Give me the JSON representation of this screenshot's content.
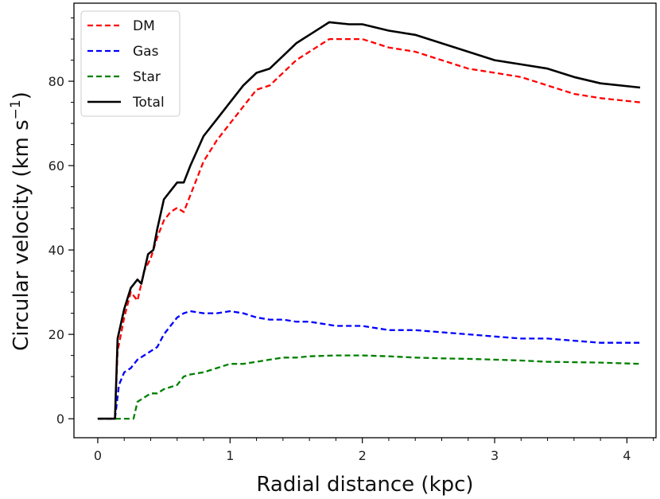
{
  "chart_data": {
    "type": "line",
    "title": "",
    "xlabel": "Radial distance (kpc)",
    "ylabel_main": "Circular velocity (km s",
    "ylabel_sup": "−1",
    "ylabel_close": ")",
    "xlim": [
      -0.18,
      4.22
    ],
    "ylim": [
      -4.5,
      98.5
    ],
    "xticks": [
      0,
      1,
      2,
      3,
      4
    ],
    "xtick_labels": [
      "0",
      "1",
      "2",
      "3",
      "4"
    ],
    "yticks": [
      0,
      20,
      40,
      60,
      80
    ],
    "ytick_labels": [
      "0",
      "20",
      "40",
      "60",
      "80"
    ],
    "x_minor_step": 0.2,
    "y_minor_step": 5,
    "grid": false,
    "legend_position": "top-left",
    "series": [
      {
        "name": "DM",
        "color": "#ff0000",
        "dashed": true,
        "points": [
          [
            0,
            0
          ],
          [
            0.13,
            0
          ],
          [
            0.15,
            16
          ],
          [
            0.2,
            24
          ],
          [
            0.25,
            30
          ],
          [
            0.3,
            28
          ],
          [
            0.35,
            35
          ],
          [
            0.4,
            38
          ],
          [
            0.45,
            43
          ],
          [
            0.5,
            47
          ],
          [
            0.55,
            49
          ],
          [
            0.6,
            50
          ],
          [
            0.65,
            49
          ],
          [
            0.7,
            53
          ],
          [
            0.8,
            61
          ],
          [
            0.9,
            66
          ],
          [
            1.0,
            70
          ],
          [
            1.1,
            74
          ],
          [
            1.2,
            78
          ],
          [
            1.3,
            79
          ],
          [
            1.4,
            82
          ],
          [
            1.5,
            85
          ],
          [
            1.6,
            87
          ],
          [
            1.7,
            89
          ],
          [
            1.75,
            90
          ],
          [
            1.9,
            90
          ],
          [
            2.0,
            90
          ],
          [
            2.2,
            88
          ],
          [
            2.4,
            87
          ],
          [
            2.6,
            85
          ],
          [
            2.8,
            83
          ],
          [
            3.0,
            82
          ],
          [
            3.2,
            81
          ],
          [
            3.4,
            79
          ],
          [
            3.6,
            77
          ],
          [
            3.8,
            76
          ],
          [
            4.1,
            75
          ]
        ]
      },
      {
        "name": "Gas",
        "color": "#0000ff",
        "dashed": true,
        "points": [
          [
            0,
            0
          ],
          [
            0.13,
            0
          ],
          [
            0.16,
            8
          ],
          [
            0.2,
            11
          ],
          [
            0.25,
            12
          ],
          [
            0.3,
            14
          ],
          [
            0.35,
            15
          ],
          [
            0.4,
            16
          ],
          [
            0.45,
            17
          ],
          [
            0.5,
            20
          ],
          [
            0.55,
            22
          ],
          [
            0.6,
            24
          ],
          [
            0.65,
            25
          ],
          [
            0.7,
            25.5
          ],
          [
            0.8,
            25
          ],
          [
            0.9,
            25
          ],
          [
            1.0,
            25.5
          ],
          [
            1.1,
            25
          ],
          [
            1.2,
            24
          ],
          [
            1.3,
            23.5
          ],
          [
            1.4,
            23.5
          ],
          [
            1.5,
            23
          ],
          [
            1.6,
            23
          ],
          [
            1.8,
            22
          ],
          [
            2.0,
            22
          ],
          [
            2.2,
            21
          ],
          [
            2.4,
            21
          ],
          [
            2.6,
            20.5
          ],
          [
            2.8,
            20
          ],
          [
            3.0,
            19.5
          ],
          [
            3.2,
            19
          ],
          [
            3.4,
            19
          ],
          [
            3.6,
            18.5
          ],
          [
            3.8,
            18
          ],
          [
            4.1,
            18
          ]
        ]
      },
      {
        "name": "Star",
        "color": "#008000",
        "dashed": true,
        "points": [
          [
            0,
            0
          ],
          [
            0.27,
            0
          ],
          [
            0.3,
            4
          ],
          [
            0.35,
            5
          ],
          [
            0.4,
            6
          ],
          [
            0.45,
            6
          ],
          [
            0.5,
            7
          ],
          [
            0.55,
            7.5
          ],
          [
            0.6,
            8
          ],
          [
            0.65,
            10
          ],
          [
            0.7,
            10.5
          ],
          [
            0.8,
            11
          ],
          [
            0.9,
            12
          ],
          [
            1.0,
            13
          ],
          [
            1.1,
            13
          ],
          [
            1.2,
            13.5
          ],
          [
            1.3,
            14
          ],
          [
            1.4,
            14.5
          ],
          [
            1.5,
            14.5
          ],
          [
            1.6,
            14.8
          ],
          [
            1.8,
            15
          ],
          [
            2.0,
            15
          ],
          [
            2.2,
            14.8
          ],
          [
            2.4,
            14.5
          ],
          [
            2.6,
            14.3
          ],
          [
            2.8,
            14.2
          ],
          [
            3.0,
            14
          ],
          [
            3.2,
            13.8
          ],
          [
            3.4,
            13.5
          ],
          [
            3.6,
            13.4
          ],
          [
            3.8,
            13.3
          ],
          [
            4.1,
            13
          ]
        ]
      },
      {
        "name": "Total",
        "color": "#000000",
        "dashed": false,
        "points": [
          [
            0,
            0
          ],
          [
            0.13,
            0
          ],
          [
            0.15,
            19
          ],
          [
            0.2,
            26
          ],
          [
            0.25,
            31
          ],
          [
            0.3,
            33
          ],
          [
            0.33,
            32
          ],
          [
            0.38,
            39
          ],
          [
            0.42,
            40
          ],
          [
            0.45,
            45
          ],
          [
            0.5,
            52
          ],
          [
            0.55,
            54
          ],
          [
            0.6,
            56
          ],
          [
            0.65,
            56
          ],
          [
            0.7,
            60
          ],
          [
            0.8,
            67
          ],
          [
            0.9,
            71
          ],
          [
            1.0,
            75
          ],
          [
            1.1,
            79
          ],
          [
            1.2,
            82
          ],
          [
            1.3,
            83
          ],
          [
            1.4,
            86
          ],
          [
            1.5,
            89
          ],
          [
            1.6,
            91
          ],
          [
            1.7,
            93
          ],
          [
            1.75,
            94
          ],
          [
            1.9,
            93.5
          ],
          [
            2.0,
            93.5
          ],
          [
            2.2,
            92
          ],
          [
            2.4,
            91
          ],
          [
            2.6,
            89
          ],
          [
            2.8,
            87
          ],
          [
            3.0,
            85
          ],
          [
            3.2,
            84
          ],
          [
            3.4,
            83
          ],
          [
            3.6,
            81
          ],
          [
            3.8,
            79.5
          ],
          [
            4.1,
            78.5
          ]
        ]
      }
    ]
  }
}
